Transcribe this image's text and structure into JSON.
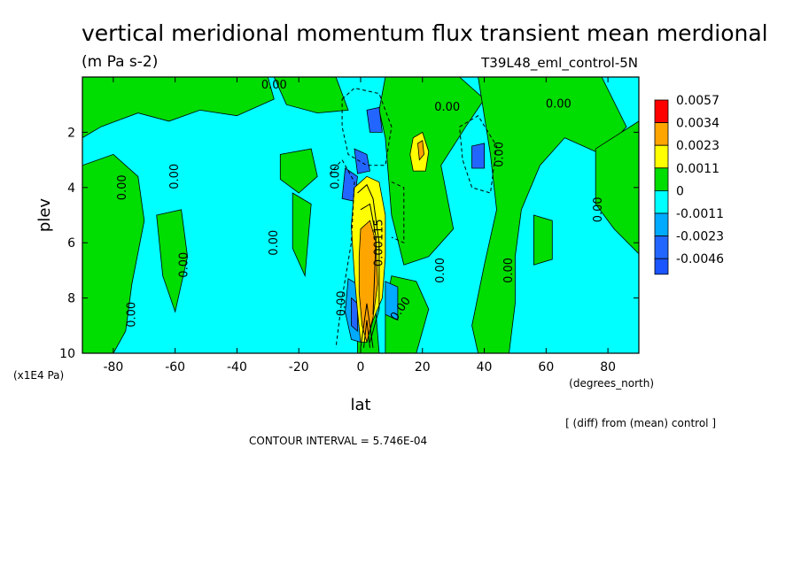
{
  "chart_data": {
    "type": "heatmap",
    "title": "vertical meridional momentum flux transient mean merdional",
    "units": "(m Pa s-2)",
    "run_label": "T39L48_eml_control-5N",
    "xlabel": "lat",
    "x_units": "(degrees_north)",
    "ylabel": "plev",
    "y_units": "(x1E4 Pa)",
    "xlim": [
      -90,
      90
    ],
    "ylim": [
      10,
      0
    ],
    "x_ticks": [
      -80,
      -60,
      -40,
      -20,
      0,
      20,
      40,
      60,
      80
    ],
    "y_ticks": [
      2,
      4,
      6,
      8,
      10
    ],
    "note": "[ (diff) from (mean) control ]",
    "contour_interval": "CONTOUR INTERVAL = 5.746E-04",
    "contour_labels": [
      "0.00",
      "0.00",
      "0.00",
      "0.00",
      "0.00",
      "0.00",
      "0.00",
      "0.00",
      "0.00",
      "0.00",
      "0.00",
      "0.00",
      "0.00",
      "0.00",
      "0.00",
      "0.00115"
    ],
    "legend": [
      {
        "label": "0.0057",
        "color": "#ff0000"
      },
      {
        "label": "0.0034",
        "color": "#ffa500"
      },
      {
        "label": "0.0023",
        "color": "#ffff00"
      },
      {
        "label": "0.0011",
        "color": "#00dd00"
      },
      {
        "label": "0",
        "color": "#00ffff"
      },
      {
        "label": "-0.0011",
        "color": "#00aaff"
      },
      {
        "label": "-0.0023",
        "color": "#2266ff"
      },
      {
        "label": "-0.0046",
        "color": ""
      }
    ],
    "colors": {
      "negative_small": "#00ffff",
      "positive_small": "#00dd00",
      "positive_mid": "#ffff00",
      "positive_high": "#ffa500",
      "negative_mid": "#00aaff",
      "negative_high": "#2266ff"
    }
  }
}
